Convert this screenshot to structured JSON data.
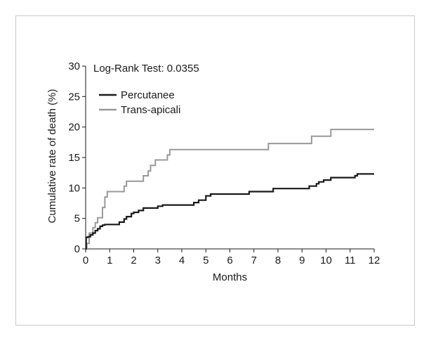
{
  "chart_data": {
    "type": "line",
    "step": true,
    "annotation": "Log-Rank Test: 0.0355",
    "xlabel": "Months",
    "ylabel": "Cumulative rate of death (%)",
    "xlim": [
      0,
      12
    ],
    "ylim": [
      0,
      30
    ],
    "xticks": [
      0,
      1,
      2,
      3,
      4,
      5,
      6,
      7,
      8,
      9,
      10,
      11,
      12
    ],
    "yticks": [
      0,
      5,
      10,
      15,
      20,
      25,
      30
    ],
    "grid": false,
    "legend_position": "top-left",
    "series": [
      {
        "name": "Percutanee",
        "color": "#1a1a1a",
        "x": [
          0,
          0.02,
          0.1,
          0.2,
          0.3,
          0.4,
          0.5,
          0.6,
          0.7,
          0.8,
          1.4,
          1.6,
          1.7,
          1.9,
          2.0,
          2.2,
          2.4,
          3.0,
          3.2,
          4.5,
          4.7,
          5.0,
          5.2,
          6.8,
          7.8,
          9.3,
          9.6,
          9.7,
          9.9,
          10.2,
          11.2,
          11.3,
          12.0
        ],
        "y": [
          0,
          1.9,
          2.0,
          2.3,
          2.6,
          3.0,
          3.3,
          3.7,
          3.9,
          4.0,
          4.4,
          4.9,
          5.3,
          5.8,
          6.0,
          6.3,
          6.7,
          7.0,
          7.2,
          7.6,
          8.0,
          8.7,
          9.0,
          9.4,
          9.9,
          10.3,
          10.7,
          11.0,
          11.3,
          11.7,
          12.0,
          12.3,
          12.3
        ]
      },
      {
        "name": "Trans-apicali",
        "color": "#999999",
        "x": [
          0,
          0.05,
          0.15,
          0.3,
          0.4,
          0.5,
          0.7,
          0.8,
          0.9,
          1.6,
          1.7,
          2.4,
          2.6,
          2.7,
          2.9,
          3.0,
          3.4,
          3.5,
          3.6,
          7.6,
          9.4,
          10.2,
          12.0
        ],
        "y": [
          0,
          0.9,
          2.6,
          3.5,
          4.3,
          5.1,
          6.8,
          8.5,
          9.4,
          10.3,
          11.1,
          12.0,
          12.8,
          13.7,
          14.6,
          14.6,
          15.4,
          16.3,
          16.3,
          17.3,
          18.5,
          19.6,
          19.6
        ]
      }
    ]
  }
}
